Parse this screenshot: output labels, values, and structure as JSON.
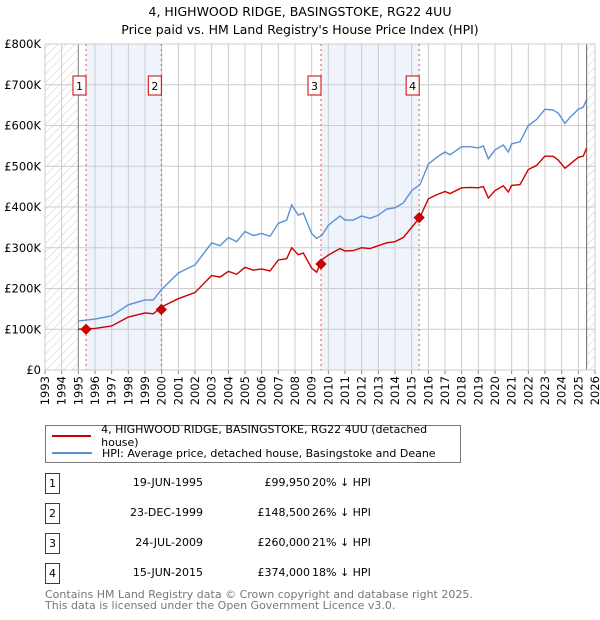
{
  "chart_data": {
    "type": "line",
    "title": "4, HIGHWOOD RIDGE, BASINGSTOKE, RG22 4UU",
    "subtitle": "Price paid vs. HM Land Registry's House Price Index (HPI)",
    "xlim": [
      1993,
      2026
    ],
    "ylim": [
      0,
      800000
    ],
    "y_ticks": [
      {
        "v": 0,
        "label": "£0"
      },
      {
        "v": 100000,
        "label": "£100K"
      },
      {
        "v": 200000,
        "label": "£200K"
      },
      {
        "v": 300000,
        "label": "£300K"
      },
      {
        "v": 400000,
        "label": "£400K"
      },
      {
        "v": 500000,
        "label": "£500K"
      },
      {
        "v": 600000,
        "label": "£600K"
      },
      {
        "v": 700000,
        "label": "£700K"
      },
      {
        "v": 800000,
        "label": "£800K"
      }
    ],
    "x_ticks": [
      "1993",
      "1994",
      "1995",
      "1996",
      "1997",
      "1998",
      "1999",
      "2000",
      "2001",
      "2002",
      "2003",
      "2004",
      "2005",
      "2006",
      "2007",
      "2008",
      "2009",
      "2010",
      "2011",
      "2012",
      "2013",
      "2014",
      "2015",
      "2016",
      "2017",
      "2018",
      "2019",
      "2020",
      "2021",
      "2022",
      "2023",
      "2024",
      "2025",
      "2026"
    ],
    "grid": true,
    "legend_placement": "below",
    "x": [
      1995,
      1996,
      1997,
      1998,
      1999,
      1999.5,
      2000,
      2001,
      2002,
      2003,
      2003.5,
      2004,
      2004.5,
      2005,
      2005.5,
      2006,
      2006.5,
      2007,
      2007.5,
      2007.8,
      2008.2,
      2008.5,
      2009,
      2009.3,
      2009.6,
      2010,
      2010.7,
      2011,
      2011.5,
      2012,
      2012.5,
      2013,
      2013.5,
      2014,
      2014.5,
      2015,
      2015.5,
      2016,
      2016.5,
      2017,
      2017.3,
      2018,
      2018.5,
      2019,
      2019.3,
      2019.6,
      2020,
      2020.5,
      2020.8,
      2021,
      2021.5,
      2022,
      2022.5,
      2023,
      2023.5,
      2023.8,
      2024.2,
      2024.5,
      2025,
      2025.3,
      2025.5
    ],
    "series": [
      {
        "name": "4, HIGHWOOD RIDGE, BASINGSTOKE, RG22 4UU (detached house)",
        "color": "#cc0000",
        "values": [
          100000,
          102000,
          108000,
          130000,
          140000,
          138000,
          155000,
          175000,
          190000,
          232000,
          228000,
          242000,
          235000,
          252000,
          245000,
          248000,
          243000,
          270000,
          273000,
          300000,
          283000,
          287000,
          250000,
          240000,
          270000,
          282000,
          298000,
          292000,
          293000,
          300000,
          298000,
          305000,
          312000,
          315000,
          325000,
          350000,
          375000,
          420000,
          430000,
          438000,
          433000,
          447000,
          448000,
          447000,
          450000,
          422000,
          440000,
          452000,
          437000,
          453000,
          455000,
          492000,
          502000,
          525000,
          524000,
          515000,
          495000,
          505000,
          522000,
          525000,
          545000
        ]
      },
      {
        "name": "HPI: Average price, detached house, Basingstoke and Deane",
        "color": "#5b8fd6",
        "values": [
          120000,
          125000,
          133000,
          160000,
          172000,
          172000,
          198000,
          238000,
          258000,
          312000,
          305000,
          325000,
          315000,
          340000,
          330000,
          335000,
          328000,
          360000,
          368000,
          405000,
          380000,
          385000,
          335000,
          323000,
          330000,
          355000,
          378000,
          368000,
          368000,
          378000,
          372000,
          380000,
          395000,
          398000,
          410000,
          440000,
          455000,
          505000,
          522000,
          535000,
          528000,
          548000,
          548000,
          545000,
          550000,
          518000,
          540000,
          552000,
          535000,
          555000,
          560000,
          600000,
          615000,
          640000,
          638000,
          630000,
          605000,
          620000,
          640000,
          645000,
          665000
        ]
      }
    ],
    "sales": [
      {
        "n": "1",
        "x": 1995.46,
        "price": 99950,
        "date": "19-JUN-1995",
        "price_label": "£99,950",
        "hpi": "20% ↓ HPI"
      },
      {
        "n": "2",
        "x": 1999.98,
        "price": 148500,
        "date": "23-DEC-1999",
        "price_label": "£148,500",
        "hpi": "26% ↓ HPI"
      },
      {
        "n": "3",
        "x": 2009.56,
        "price": 260000,
        "date": "24-JUL-2009",
        "price_label": "£260,000",
        "hpi": "21% ↓ HPI"
      },
      {
        "n": "4",
        "x": 2015.45,
        "price": 374000,
        "date": "15-JUN-2015",
        "price_label": "£374,000",
        "hpi": "18% ↓ HPI"
      }
    ]
  },
  "footer": {
    "line1": "Contains HM Land Registry data © Crown copyright and database right 2025.",
    "line2": "This data is licensed under the Open Government Licence v3.0."
  }
}
